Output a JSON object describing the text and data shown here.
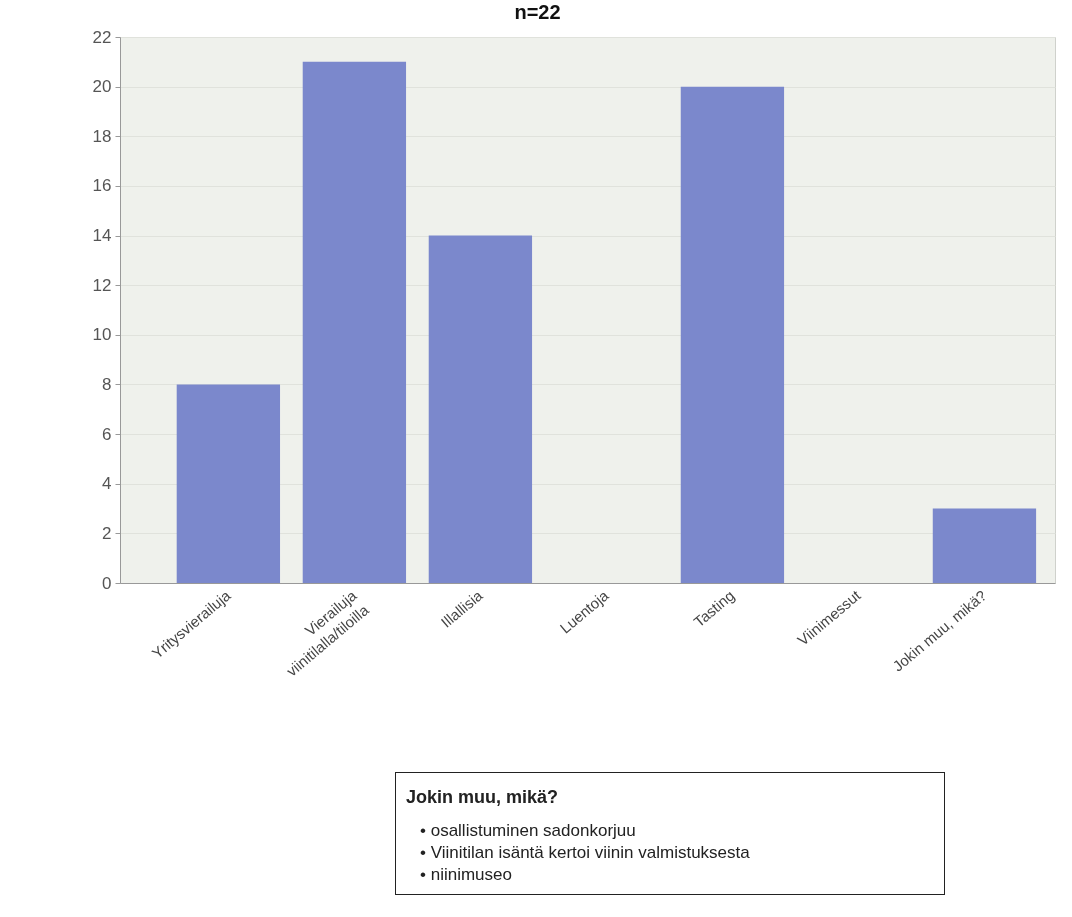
{
  "chart_data": {
    "type": "bar",
    "title": "n=22",
    "categories": [
      "Yritysvierailuja",
      "Vierailuja viinitilalla/tiloilla",
      "Illallisia",
      "Luentoja",
      "Tasting",
      "Viinimessut",
      "Jokin muu, mikä?"
    ],
    "values": [
      8,
      21,
      14,
      0,
      20,
      0,
      3
    ],
    "color": "#7b88cc",
    "ylim": [
      0,
      22
    ],
    "yticks": [
      0,
      2,
      4,
      6,
      8,
      10,
      12,
      14,
      16,
      18,
      20,
      22
    ],
    "grid": "y",
    "annotations": [
      "Jokin muu, mikä?",
      "• osallistuminen sadonkorjuu",
      "• Viinitilan isäntä kertoi viinin valmistuksesta",
      "• niinimuseo"
    ]
  }
}
